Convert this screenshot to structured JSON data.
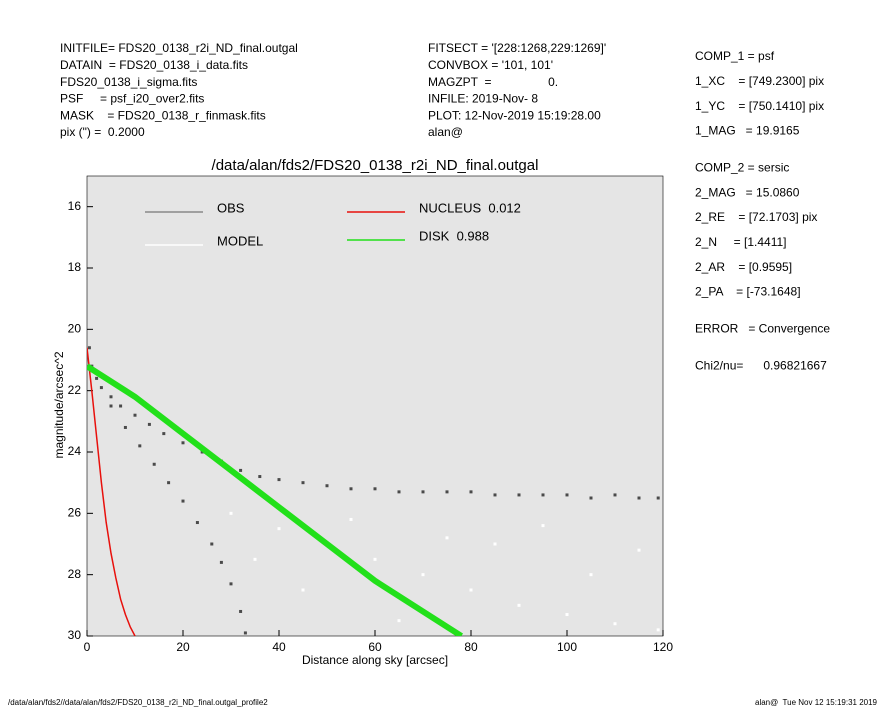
{
  "header": {
    "left": [
      "INITFILE= FDS20_0138_r2i_ND_final.outgal",
      "DATAIN  = FDS20_0138_i_data.fits",
      "FDS20_0138_i_sigma.fits",
      "PSF     = psf_i20_over2.fits",
      "MASK    = FDS20_0138_r_finmask.fits",
      "pix (\") =  0.2000"
    ],
    "middle": [
      "FITSECT = '[228:1268,229:1269]'",
      "CONVBOX = '101, 101'",
      "MAGZPT  =                 0.",
      "INFILE: 2019-Nov- 8",
      "PLOT: 12-Nov-2019 15:19:28.00",
      "alan@"
    ],
    "right": [
      [
        "COMP_1 = psf",
        "1_XC    = [749.2300] pix",
        "1_YC    = [750.1410] pix",
        "1_MAG   = 19.9165"
      ],
      [
        "COMP_2 = sersic",
        "2_MAG   = 15.0860",
        "2_RE    = [72.1703] pix",
        "2_N     = [1.4411]",
        "2_AR    = [0.9595]",
        "2_PA    = [-73.1648]"
      ],
      [
        "ERROR   = Convergence"
      ],
      [
        "Chi2/nu=      0.96821667"
      ]
    ]
  },
  "footer": {
    "left": "/data/alan/fds2//data/alan/fds2/FDS20_0138_r2i_ND_final.outgal_profile2",
    "right": "alan@  Tue Nov 12 15:19:31 2019"
  },
  "chart_data": {
    "type": "scatter",
    "title": "/data/alan/fds2/FDS20_0138_r2i_ND_final.outgal",
    "xlabel": "Distance along sky [arcsec]",
    "ylabel": "magnitude/arcsec^2",
    "xlim": [
      0,
      120
    ],
    "ylim": [
      30,
      15
    ],
    "xticks": [
      0,
      20,
      40,
      60,
      80,
      100,
      120
    ],
    "yticks": [
      16,
      18,
      20,
      22,
      24,
      26,
      28,
      30
    ],
    "background": "#e5e5e5",
    "series": [
      {
        "name": "OBS",
        "type": "scatter",
        "color": "#4a4a4a",
        "legend_color": "#8a8a8a",
        "x": [
          0.5,
          1,
          2,
          3,
          5,
          7,
          10,
          13,
          16,
          20,
          24,
          28,
          32,
          36,
          40,
          45,
          50,
          55,
          60,
          65,
          70,
          75,
          80,
          85,
          90,
          95,
          100,
          105,
          110,
          115,
          119,
          5,
          8,
          11,
          14,
          17,
          20,
          23,
          26,
          28,
          30,
          32,
          33
        ],
        "values": [
          20.6,
          21.2,
          21.6,
          21.9,
          22.2,
          22.5,
          22.8,
          23.1,
          23.4,
          23.7,
          24.0,
          24.3,
          24.6,
          24.8,
          24.9,
          25.0,
          25.1,
          25.2,
          25.2,
          25.3,
          25.3,
          25.3,
          25.3,
          25.4,
          25.4,
          25.4,
          25.4,
          25.5,
          25.4,
          25.5,
          25.5,
          22.5,
          23.2,
          23.8,
          24.4,
          25.0,
          25.6,
          26.3,
          27.0,
          27.6,
          28.3,
          29.2,
          29.9
        ]
      },
      {
        "name": "MODEL",
        "type": "scatter",
        "color": "#ffffff",
        "legend_color": "#ffffff",
        "x": [
          30,
          40,
          50,
          60,
          70,
          80,
          90,
          100,
          110,
          119,
          45,
          65,
          85,
          105,
          35,
          55,
          75,
          95,
          115
        ],
        "values": [
          26.0,
          26.5,
          27.0,
          27.5,
          28.0,
          28.5,
          29.0,
          29.3,
          29.6,
          29.8,
          28.5,
          29.5,
          27.0,
          28.0,
          27.5,
          26.2,
          26.8,
          26.4,
          27.2
        ]
      },
      {
        "name": "NUCLEUS  0.012",
        "type": "line",
        "color": "#e8100c",
        "legend_color": "#e8100c",
        "x": [
          0,
          1,
          2,
          3,
          4,
          5,
          6,
          7,
          8,
          9,
          10
        ],
        "values": [
          20.6,
          22.0,
          23.5,
          25.0,
          26.3,
          27.3,
          28.1,
          28.8,
          29.3,
          29.7,
          30.0
        ]
      },
      {
        "name": "DISK  0.988",
        "type": "line",
        "color": "#22e01a",
        "legend_color": "#22e01a",
        "x": [
          0,
          10,
          20,
          30,
          40,
          50,
          60,
          70,
          78
        ],
        "values": [
          21.2,
          22.2,
          23.4,
          24.6,
          25.8,
          27.0,
          28.2,
          29.2,
          30.0
        ]
      }
    ]
  }
}
